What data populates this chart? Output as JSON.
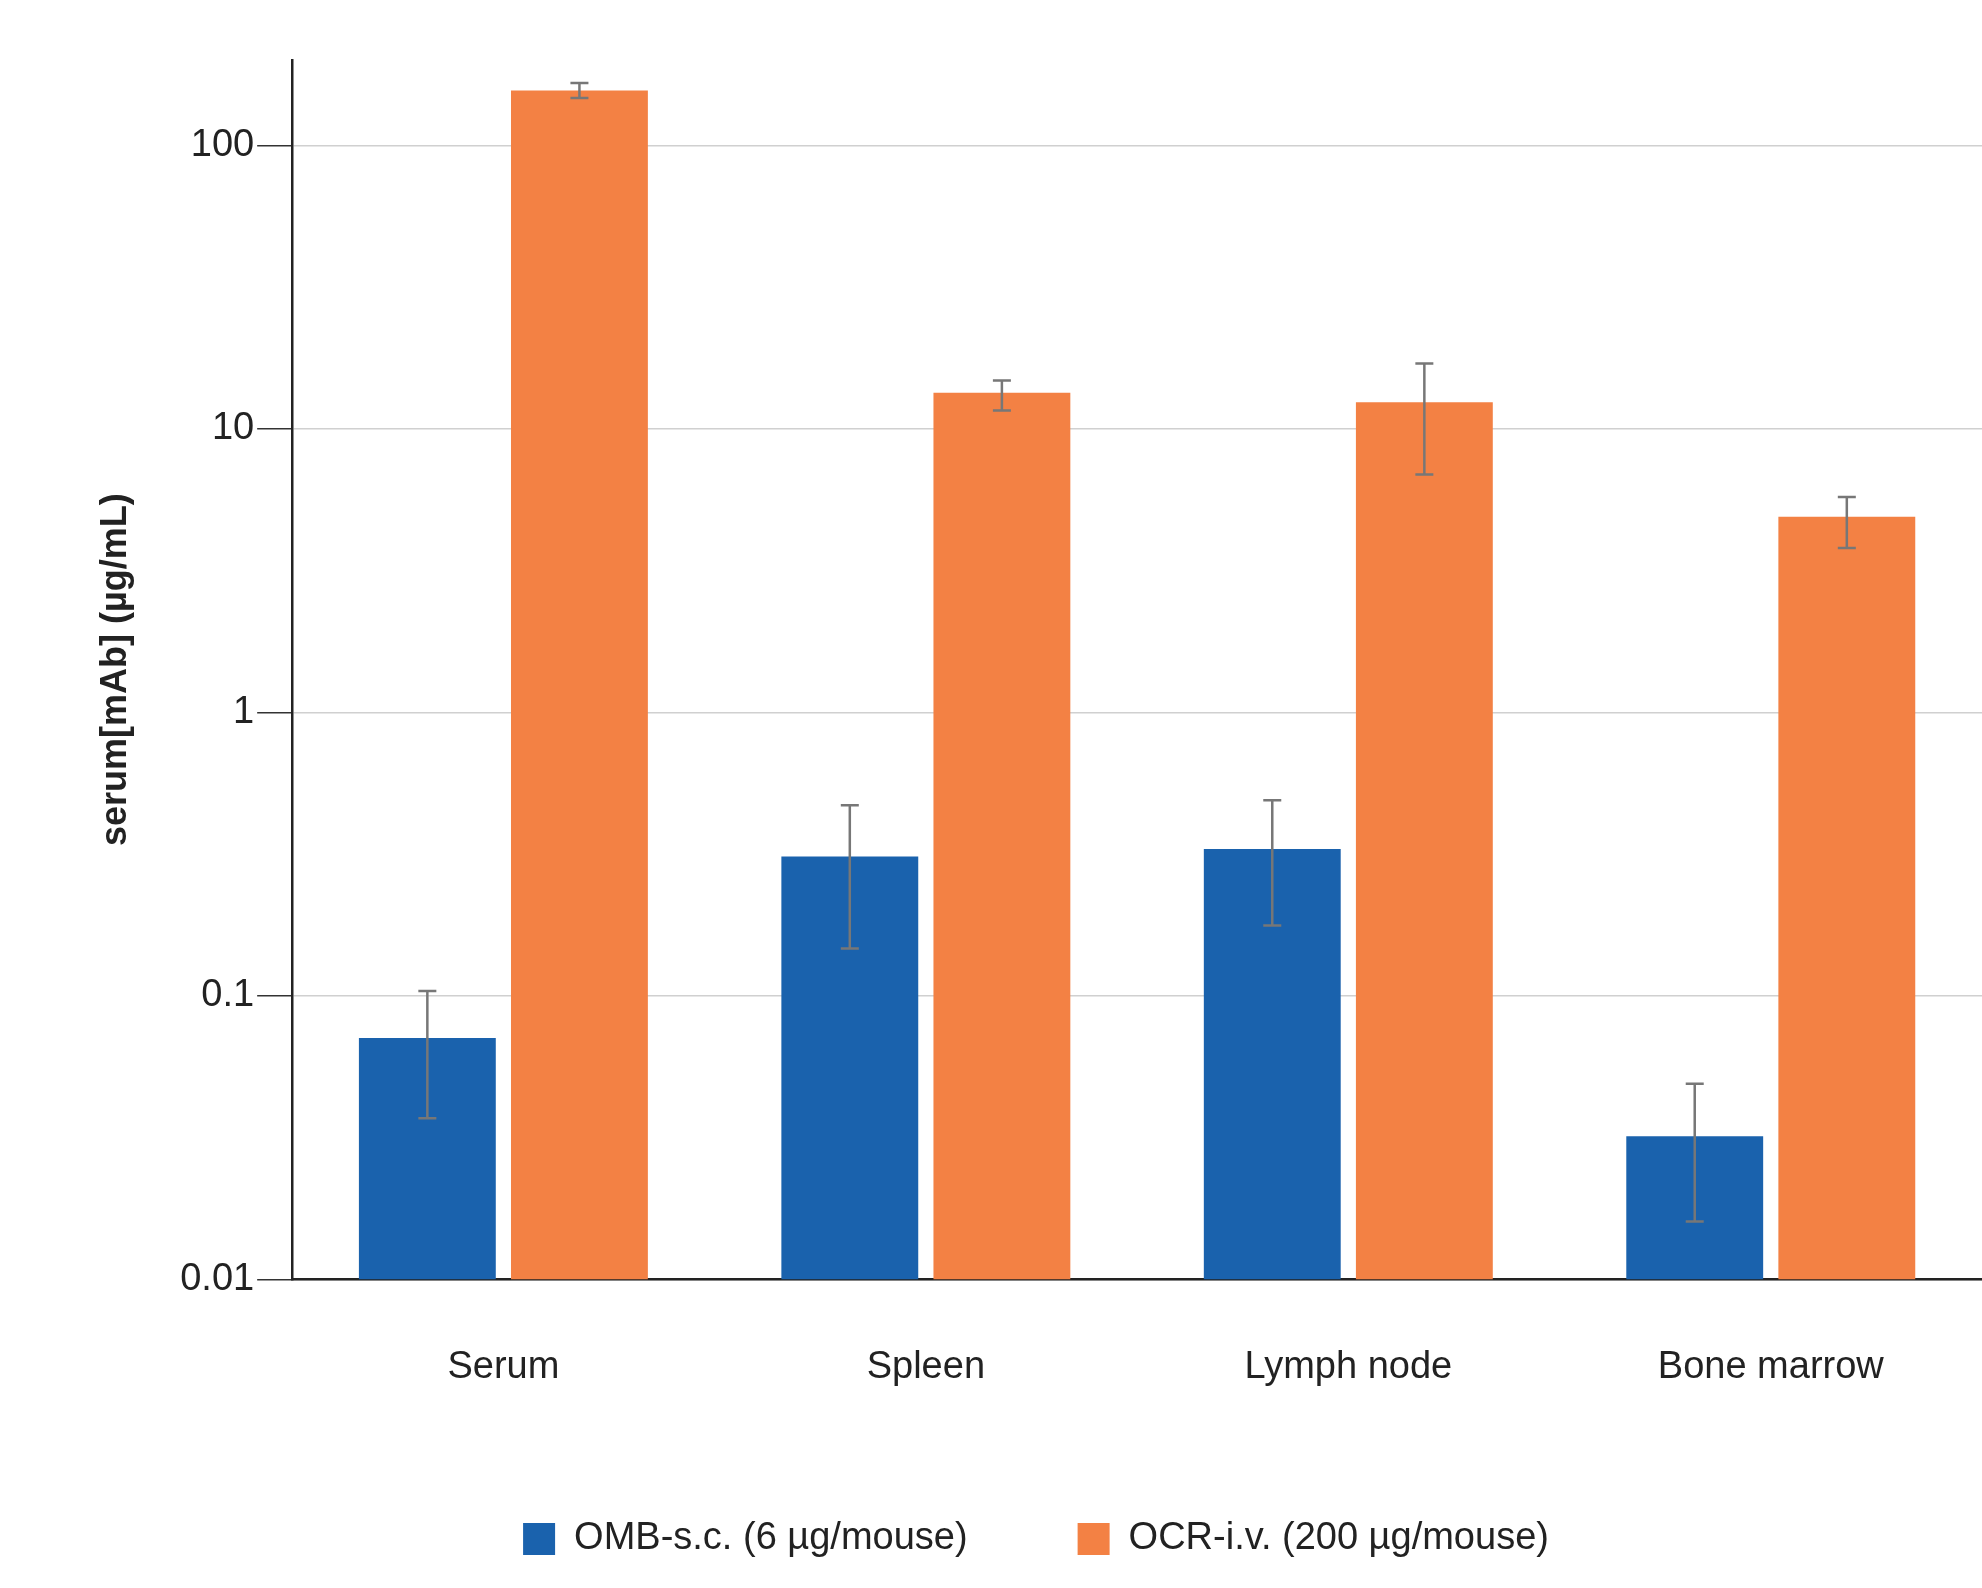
{
  "chart_data": {
    "type": "bar",
    "ylabel": "serum[mAb] (µg/mL)",
    "categories": [
      "Serum",
      "Spleen",
      "Lymph node",
      "Bone marrow"
    ],
    "series": [
      {
        "name": "OMB-s.c. (6 µg/mouse)",
        "color": "#1a62ad",
        "values": [
          0.071,
          0.31,
          0.33,
          0.032
        ],
        "errors": [
          [
            0.037,
            0.104
          ],
          [
            0.147,
            0.47
          ],
          [
            0.177,
            0.49
          ],
          [
            0.016,
            0.049
          ]
        ]
      },
      {
        "name": "OCR-i.v. (200 µg/mouse)",
        "color": "#f38144",
        "values": [
          156,
          13.4,
          12.4,
          4.9
        ],
        "errors": [
          [
            147,
            166
          ],
          [
            11.6,
            14.8
          ],
          [
            6.9,
            17
          ],
          [
            3.8,
            5.75
          ]
        ]
      }
    ],
    "log": "y",
    "ylim": [
      0.01,
      200
    ],
    "yticks": [
      0.01,
      0.1,
      1,
      10,
      100
    ],
    "grid": "y",
    "legend": "bottom"
  }
}
